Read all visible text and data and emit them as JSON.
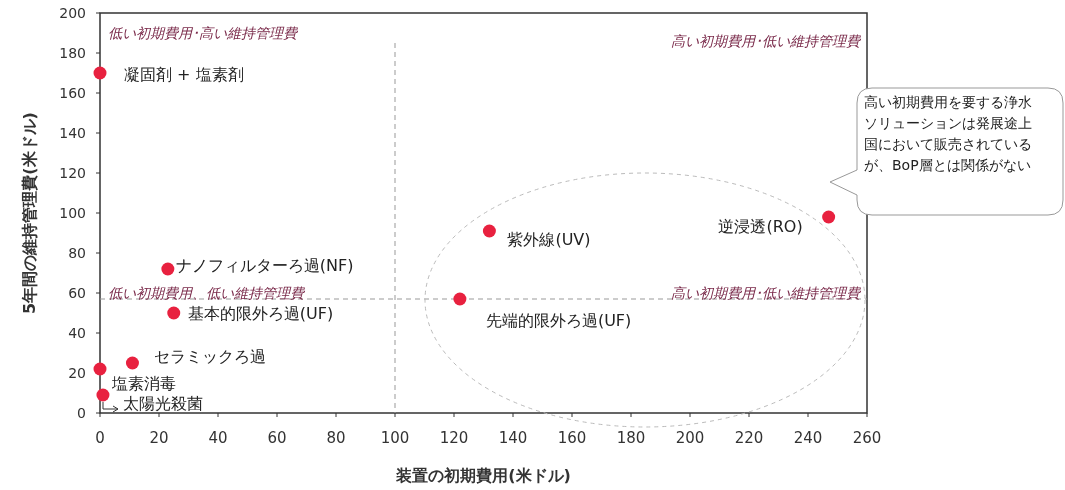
{
  "chart_data": {
    "type": "scatter",
    "xlabel": "装置の初期費用(米ドル)",
    "ylabel": "5年間の維持管理費(米ドル)",
    "xlim": [
      0,
      260
    ],
    "xticks": [
      0,
      20,
      40,
      60,
      80,
      100,
      120,
      140,
      160,
      180,
      200,
      220,
      240,
      260
    ],
    "ylim": [
      0,
      200
    ],
    "yticks": [
      0,
      20,
      40,
      60,
      80,
      100,
      120,
      140,
      160,
      180,
      200
    ],
    "grid": false,
    "marker": "circle",
    "series": [
      {
        "name": "凝固剤 + 塩素剤",
        "color": "#e8213f",
        "x": [
          0
        ],
        "values": [
          170
        ]
      },
      {
        "name": "ナノフィルターろ過(NF)",
        "color": "#e8213f",
        "x": [
          23
        ],
        "values": [
          72
        ]
      },
      {
        "name": "基本的限外ろ過(UF)",
        "color": "#e8213f",
        "x": [
          25
        ],
        "values": [
          50
        ]
      },
      {
        "name": "セラミックろ過",
        "color": "#e8213f",
        "x": [
          11
        ],
        "values": [
          25
        ]
      },
      {
        "name": "塩素消毒",
        "color": "#e8213f",
        "x": [
          0
        ],
        "values": [
          22
        ]
      },
      {
        "name": "太陽光殺菌",
        "color": "#e8213f",
        "x": [
          1
        ],
        "values": [
          9
        ]
      },
      {
        "name": "紫外線(UV)",
        "color": "#e8213f",
        "x": [
          132
        ],
        "values": [
          91
        ]
      },
      {
        "name": "先端的限外ろ過(UF)",
        "color": "#e8213f",
        "x": [
          122
        ],
        "values": [
          57
        ]
      },
      {
        "name": "逆浸透(RO)",
        "color": "#e8213f",
        "x": [
          247
        ],
        "values": [
          98
        ]
      }
    ],
    "ref_lines": [
      {
        "axis": "x",
        "value": 100,
        "color": "#999999",
        "line_style": "dashed"
      },
      {
        "axis": "y",
        "value": 57,
        "color": "#999999",
        "line_style": "dashed"
      }
    ],
    "annotations": [
      "低い初期費用･高い維持管理費",
      "高い初期費用･低い維持管理費",
      "低い初期費用、低い維持管理費",
      "高い初期費用･低い維持管理費",
      "高い初期費用を要する浄水ソリューションは発展途上国において販売されているが、BoP層とは関係がない"
    ]
  }
}
